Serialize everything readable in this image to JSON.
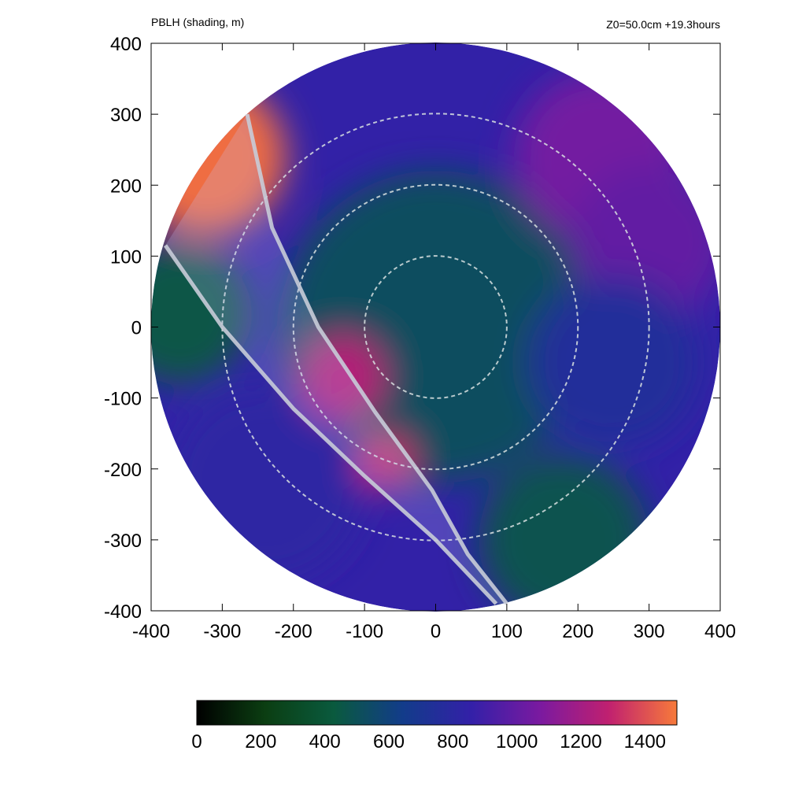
{
  "header": {
    "title": "PBLH (shading, m)",
    "info": "Z0=50.0cm  +19.3hours"
  },
  "chart_data": {
    "type": "heatmap",
    "title": "PBLH (shading, m)",
    "annotation": "Z0=50.0cm  +19.3hours",
    "xlim": [
      -400,
      400
    ],
    "ylim": [
      -400,
      400
    ],
    "x_ticks": [
      -400,
      -300,
      -200,
      -100,
      0,
      100,
      200,
      300,
      400
    ],
    "y_ticks": [
      -400,
      -300,
      -200,
      -100,
      0,
      100,
      200,
      300,
      400
    ],
    "domain_radius": 400,
    "range_rings": [
      100,
      200,
      300
    ],
    "grid": false,
    "colorbar": {
      "position": "bottom",
      "min": 0,
      "max": 1500,
      "ticks": [
        0,
        200,
        400,
        600,
        800,
        1000,
        1200,
        1400
      ],
      "colors": [
        "#000000",
        "#0b3e12",
        "#0a5a3e",
        "#123c8a",
        "#3320a8",
        "#7a1aa0",
        "#c02070",
        "#f77a3a"
      ]
    },
    "highlight_band": {
      "left_edge": [
        [
          -380,
          115
        ],
        [
          -300,
          0
        ],
        [
          -200,
          -115
        ],
        [
          -100,
          -210
        ],
        [
          0,
          -300
        ],
        [
          85,
          -390
        ]
      ],
      "right_edge": [
        [
          -265,
          300
        ],
        [
          -230,
          140
        ],
        [
          -165,
          0
        ],
        [
          -85,
          -120
        ],
        [
          -5,
          -230
        ],
        [
          45,
          -320
        ],
        [
          100,
          -390
        ]
      ]
    },
    "fields": [
      {
        "x": 0,
        "y": 0,
        "r": 110,
        "value": 460
      },
      {
        "x": 0,
        "y": 0,
        "r": 220,
        "value": 520
      },
      {
        "x": -320,
        "y": 240,
        "r": 110,
        "value": 1470
      },
      {
        "x": -360,
        "y": 20,
        "r": 100,
        "value": 450
      },
      {
        "x": 230,
        "y": 240,
        "r": 120,
        "value": 1050
      },
      {
        "x": 300,
        "y": 120,
        "r": 110,
        "value": 1000
      },
      {
        "x": 250,
        "y": -50,
        "r": 120,
        "value": 760
      },
      {
        "x": -240,
        "y": -220,
        "r": 140,
        "value": 820
      },
      {
        "x": 180,
        "y": -300,
        "r": 120,
        "value": 480
      },
      {
        "x": -130,
        "y": -70,
        "r": 60,
        "value": 1250
      },
      {
        "x": -70,
        "y": -190,
        "r": 40,
        "value": 1300
      }
    ]
  }
}
